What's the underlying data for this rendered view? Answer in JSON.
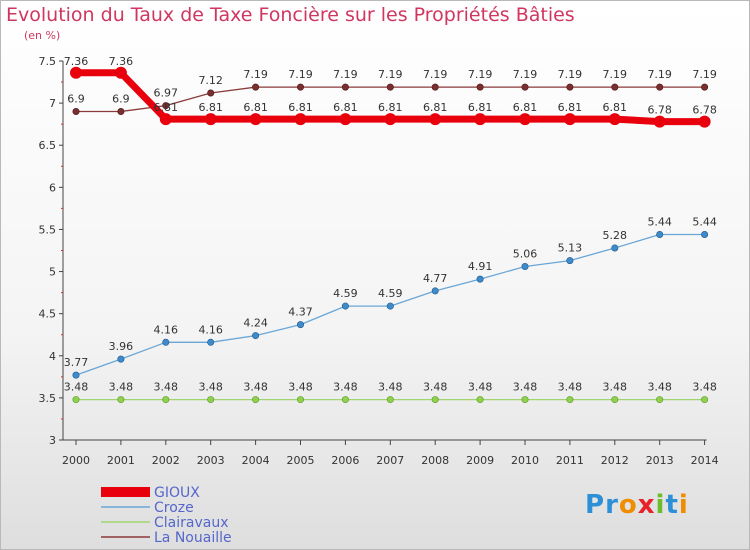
{
  "title": "Evolution du Taux de Taxe Foncière sur les Propriétés Bâties",
  "subtitle": "(en %)",
  "logo": {
    "text": "Proxiti",
    "letters": [
      "P",
      "r",
      "o",
      "x",
      "i",
      "t",
      "i"
    ],
    "colors": [
      "#2d8fd6",
      "#2d8fd6",
      "#f08c00",
      "#e8202a",
      "#6cbd2c",
      "#2d8fd6",
      "#f08c00"
    ]
  },
  "chart_data": {
    "type": "line",
    "title": "Evolution du Taux de Taxe Foncière sur les Propriétés Bâties",
    "ylabel": "(en %)",
    "x": [
      "2000",
      "2001",
      "2002",
      "2003",
      "2004",
      "2005",
      "2006",
      "2007",
      "2008",
      "2009",
      "2010",
      "2011",
      "2012",
      "2013",
      "2014"
    ],
    "ylim": [
      3,
      7.5
    ],
    "yticks": [
      "3",
      "3.5",
      "4",
      "4.5",
      "5",
      "5.5",
      "6",
      "6.5",
      "7",
      "7.5"
    ],
    "grid": false,
    "legend_position": "bottom-left",
    "series": [
      {
        "name": "GIOUX",
        "color": "#e8000d",
        "values": [
          7.36,
          7.36,
          6.81,
          6.81,
          6.81,
          6.81,
          6.81,
          6.81,
          6.81,
          6.81,
          6.81,
          6.81,
          6.81,
          6.78,
          6.78
        ],
        "labels": [
          "7.36",
          "7.36",
          "6.81",
          "6.81",
          "6.81",
          "6.81",
          "6.81",
          "6.81",
          "6.81",
          "6.81",
          "6.81",
          "6.81",
          "6.81",
          "6.78",
          "6.78"
        ]
      },
      {
        "name": "Croze",
        "color": "#6aa6d6",
        "values": [
          3.77,
          3.96,
          4.16,
          4.16,
          4.24,
          4.37,
          4.59,
          4.59,
          4.77,
          4.91,
          5.06,
          5.13,
          5.28,
          5.44,
          5.44
        ],
        "labels": [
          "3.77",
          "3.96",
          "4.16",
          "4.16",
          "4.24",
          "4.37",
          "4.59",
          "4.59",
          "4.77",
          "4.91",
          "5.06",
          "5.13",
          "5.28",
          "5.44",
          "5.44"
        ]
      },
      {
        "name": "Clairavaux",
        "color": "#9fd46e",
        "values": [
          3.48,
          3.48,
          3.48,
          3.48,
          3.48,
          3.48,
          3.48,
          3.48,
          3.48,
          3.48,
          3.48,
          3.48,
          3.48,
          3.48,
          3.48
        ],
        "labels": [
          "3.48",
          "3.48",
          "3.48",
          "3.48",
          "3.48",
          "3.48",
          "3.48",
          "3.48",
          "3.48",
          "3.48",
          "3.48",
          "3.48",
          "3.48",
          "3.48",
          "3.48"
        ]
      },
      {
        "name": "La Nouaille",
        "color": "#8a3a3a",
        "values": [
          6.9,
          6.9,
          6.97,
          7.12,
          7.19,
          7.19,
          7.19,
          7.19,
          7.19,
          7.19,
          7.19,
          7.19,
          7.19,
          7.19,
          7.19
        ],
        "labels": [
          "6.9",
          "6.9",
          "6.97",
          "7.12",
          "7.19",
          "7.19",
          "7.19",
          "7.19",
          "7.19",
          "7.19",
          "7.19",
          "7.19",
          "7.19",
          "7.19",
          "7.19"
        ]
      }
    ]
  }
}
